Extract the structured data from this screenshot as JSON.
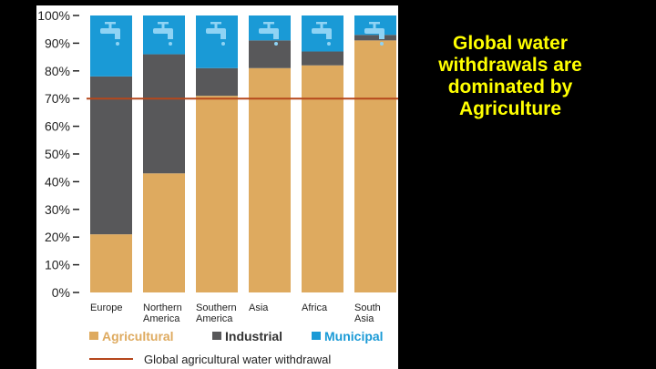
{
  "slide": {
    "headline": "Global water withdrawals are dominated by Agriculture"
  },
  "chart_data": {
    "type": "bar",
    "stacked": true,
    "categories": [
      "Europe",
      "Northern America",
      "Southern America",
      "Asia",
      "Africa",
      "South Asia"
    ],
    "category_lines": [
      [
        "Europe"
      ],
      [
        "Northern",
        "America"
      ],
      [
        "Southern",
        "America"
      ],
      [
        "Asia"
      ],
      [
        "Africa"
      ],
      [
        "South",
        "Asia"
      ]
    ],
    "series": [
      {
        "name": "Agricultural",
        "color": "#deaa5f",
        "values": [
          21,
          43,
          71,
          81,
          82,
          91
        ]
      },
      {
        "name": "Industrial",
        "color": "#58585a",
        "values": [
          57,
          43,
          10,
          10,
          5,
          2
        ]
      },
      {
        "name": "Municipal",
        "color": "#1a9ad6",
        "values": [
          22,
          14,
          19,
          9,
          13,
          7
        ]
      }
    ],
    "reference_line": {
      "name": "Global agricultural water withdrawal",
      "value": 70,
      "color": "#b5471c"
    },
    "yticks": [
      "0%",
      "10%",
      "20%",
      "30%",
      "40%",
      "50%",
      "60%",
      "70%",
      "80%",
      "90%",
      "100%"
    ],
    "ylim": [
      0,
      100
    ],
    "title": "",
    "xlabel": "",
    "ylabel": "",
    "legend_position": "bottom",
    "grid": false
  }
}
